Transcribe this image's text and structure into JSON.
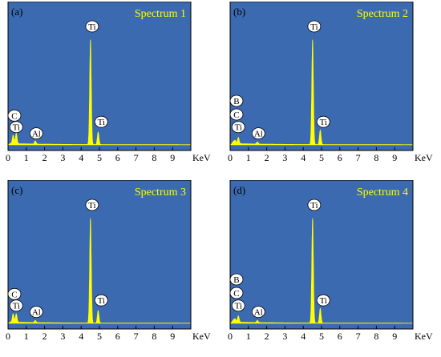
{
  "chart_data": [
    {
      "type": "line",
      "panel_label": "(a)",
      "title": "Spectrum 1",
      "x_unit": "KeV",
      "x_ticks": [
        "0",
        "1",
        "2",
        "3",
        "4",
        "5",
        "6",
        "7",
        "8",
        "9"
      ],
      "xlim": [
        0,
        10
      ],
      "ylim": [
        0,
        100
      ],
      "background": "#3c6ab0",
      "line_color": "#ffff00",
      "title_color": "#ffff00",
      "peaks": [
        {
          "element": "C",
          "energy": 0.28,
          "height": 8
        },
        {
          "element": "Ti",
          "energy": 0.45,
          "height": 10
        },
        {
          "element": "Al",
          "energy": 1.49,
          "height": 3
        },
        {
          "element": "Ti",
          "energy": 4.51,
          "height": 100
        },
        {
          "element": "Ti",
          "energy": 4.93,
          "height": 12
        }
      ],
      "labels": [
        {
          "text": "C",
          "energy": 0.35,
          "height": 28
        },
        {
          "text": "Ti",
          "energy": 0.45,
          "height": 17
        },
        {
          "text": "Al",
          "energy": 1.55,
          "height": 11
        },
        {
          "text": "Ti",
          "energy": 4.6,
          "height": 113
        },
        {
          "text": "Ti",
          "energy": 5.1,
          "height": 22
        }
      ]
    },
    {
      "type": "line",
      "panel_label": "(b)",
      "title": "Spectrum 2",
      "x_unit": "KeV",
      "x_ticks": [
        "0",
        "1",
        "2",
        "3",
        "4",
        "5",
        "6",
        "7",
        "8",
        "9"
      ],
      "xlim": [
        0,
        10
      ],
      "ylim": [
        0,
        100
      ],
      "background": "#3c6ab0",
      "line_color": "#ffff00",
      "title_color": "#ffff00",
      "peaks": [
        {
          "element": "B",
          "energy": 0.18,
          "height": 2
        },
        {
          "element": "C",
          "energy": 0.28,
          "height": 3
        },
        {
          "element": "Ti",
          "energy": 0.45,
          "height": 6
        },
        {
          "element": "Al",
          "energy": 1.49,
          "height": 2
        },
        {
          "element": "Ti",
          "energy": 4.51,
          "height": 100
        },
        {
          "element": "Ti",
          "energy": 4.93,
          "height": 14
        }
      ],
      "labels": [
        {
          "text": "B",
          "energy": 0.35,
          "height": 42
        },
        {
          "text": "C",
          "energy": 0.35,
          "height": 29
        },
        {
          "text": "Ti",
          "energy": 0.45,
          "height": 17
        },
        {
          "text": "Al",
          "energy": 1.55,
          "height": 11
        },
        {
          "text": "Ti",
          "energy": 4.6,
          "height": 113
        },
        {
          "text": "Ti",
          "energy": 5.1,
          "height": 22
        }
      ]
    },
    {
      "type": "line",
      "panel_label": "(c)",
      "title": "Spectrum 3",
      "x_unit": "KeV",
      "x_ticks": [
        "0",
        "1",
        "2",
        "3",
        "4",
        "5",
        "6",
        "7",
        "8",
        "9"
      ],
      "xlim": [
        0,
        10
      ],
      "ylim": [
        0,
        100
      ],
      "background": "#3c6ab0",
      "line_color": "#ffff00",
      "title_color": "#ffff00",
      "peaks": [
        {
          "element": "C",
          "energy": 0.28,
          "height": 8
        },
        {
          "element": "Ti",
          "energy": 0.45,
          "height": 8
        },
        {
          "element": "Al",
          "energy": 1.49,
          "height": 2
        },
        {
          "element": "Ti",
          "energy": 4.51,
          "height": 100
        },
        {
          "element": "Ti",
          "energy": 4.93,
          "height": 12
        }
      ],
      "labels": [
        {
          "text": "C",
          "energy": 0.35,
          "height": 28
        },
        {
          "text": "Ti",
          "energy": 0.45,
          "height": 17
        },
        {
          "text": "Al",
          "energy": 1.55,
          "height": 11
        },
        {
          "text": "Ti",
          "energy": 4.6,
          "height": 113
        },
        {
          "text": "Ti",
          "energy": 5.1,
          "height": 22
        }
      ]
    },
    {
      "type": "line",
      "panel_label": "(d)",
      "title": "Spectrum 4",
      "x_unit": "KeV",
      "x_ticks": [
        "0",
        "1",
        "2",
        "3",
        "4",
        "5",
        "6",
        "7",
        "8",
        "9"
      ],
      "xlim": [
        0,
        10
      ],
      "ylim": [
        0,
        100
      ],
      "background": "#3c6ab0",
      "line_color": "#ffff00",
      "title_color": "#ffff00",
      "peaks": [
        {
          "element": "B",
          "energy": 0.18,
          "height": 2
        },
        {
          "element": "C",
          "energy": 0.28,
          "height": 3
        },
        {
          "element": "Ti",
          "energy": 0.45,
          "height": 6
        },
        {
          "element": "Al",
          "energy": 1.49,
          "height": 2
        },
        {
          "element": "Ti",
          "energy": 4.51,
          "height": 100
        },
        {
          "element": "Ti",
          "energy": 4.93,
          "height": 14
        }
      ],
      "labels": [
        {
          "text": "B",
          "energy": 0.35,
          "height": 42
        },
        {
          "text": "C",
          "energy": 0.35,
          "height": 29
        },
        {
          "text": "Ti",
          "energy": 0.45,
          "height": 17
        },
        {
          "text": "Al",
          "energy": 1.55,
          "height": 11
        },
        {
          "text": "Ti",
          "energy": 4.6,
          "height": 113
        },
        {
          "text": "Ti",
          "energy": 5.1,
          "height": 22
        }
      ]
    }
  ]
}
